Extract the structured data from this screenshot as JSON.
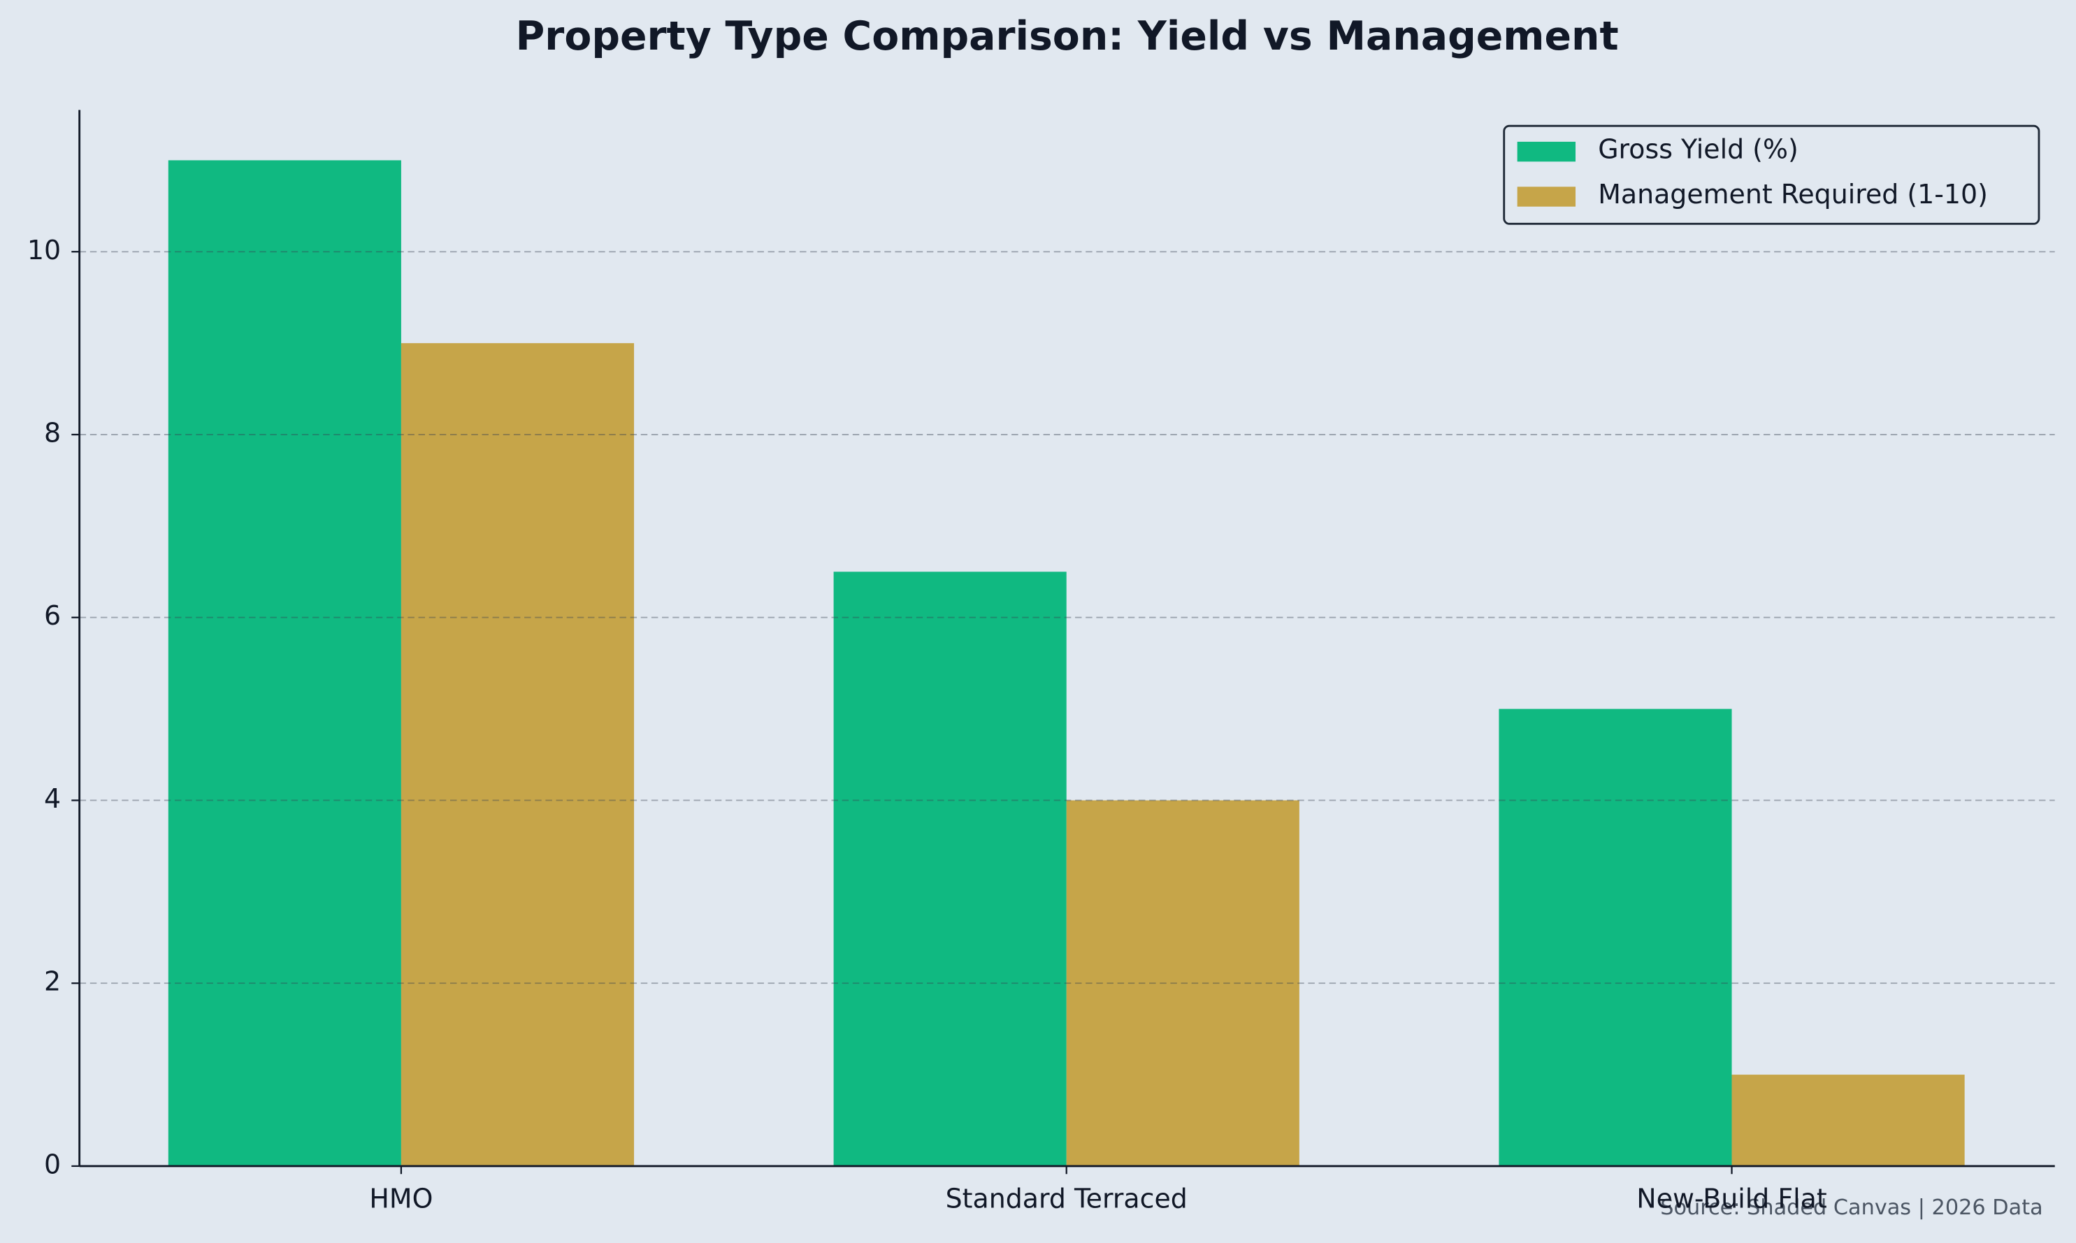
{
  "chart_data": {
    "type": "bar",
    "title": "Property Type Comparison: Yield vs Management",
    "categories": [
      "HMO",
      "Standard Terraced",
      "New-Build Flat"
    ],
    "series": [
      {
        "name": "Gross Yield (%)",
        "color": "#10b981",
        "values": [
          11,
          6.5,
          5
        ]
      },
      {
        "name": "Management Required (1-10)",
        "color": "#c6a549",
        "values": [
          9,
          4,
          1
        ]
      }
    ],
    "ylim": [
      0,
      11.55
    ],
    "yticks": [
      0,
      2,
      4,
      6,
      8,
      10
    ],
    "grid": true,
    "legend": "upper right",
    "source": "Source: Shaded Canvas | 2026 Data"
  }
}
